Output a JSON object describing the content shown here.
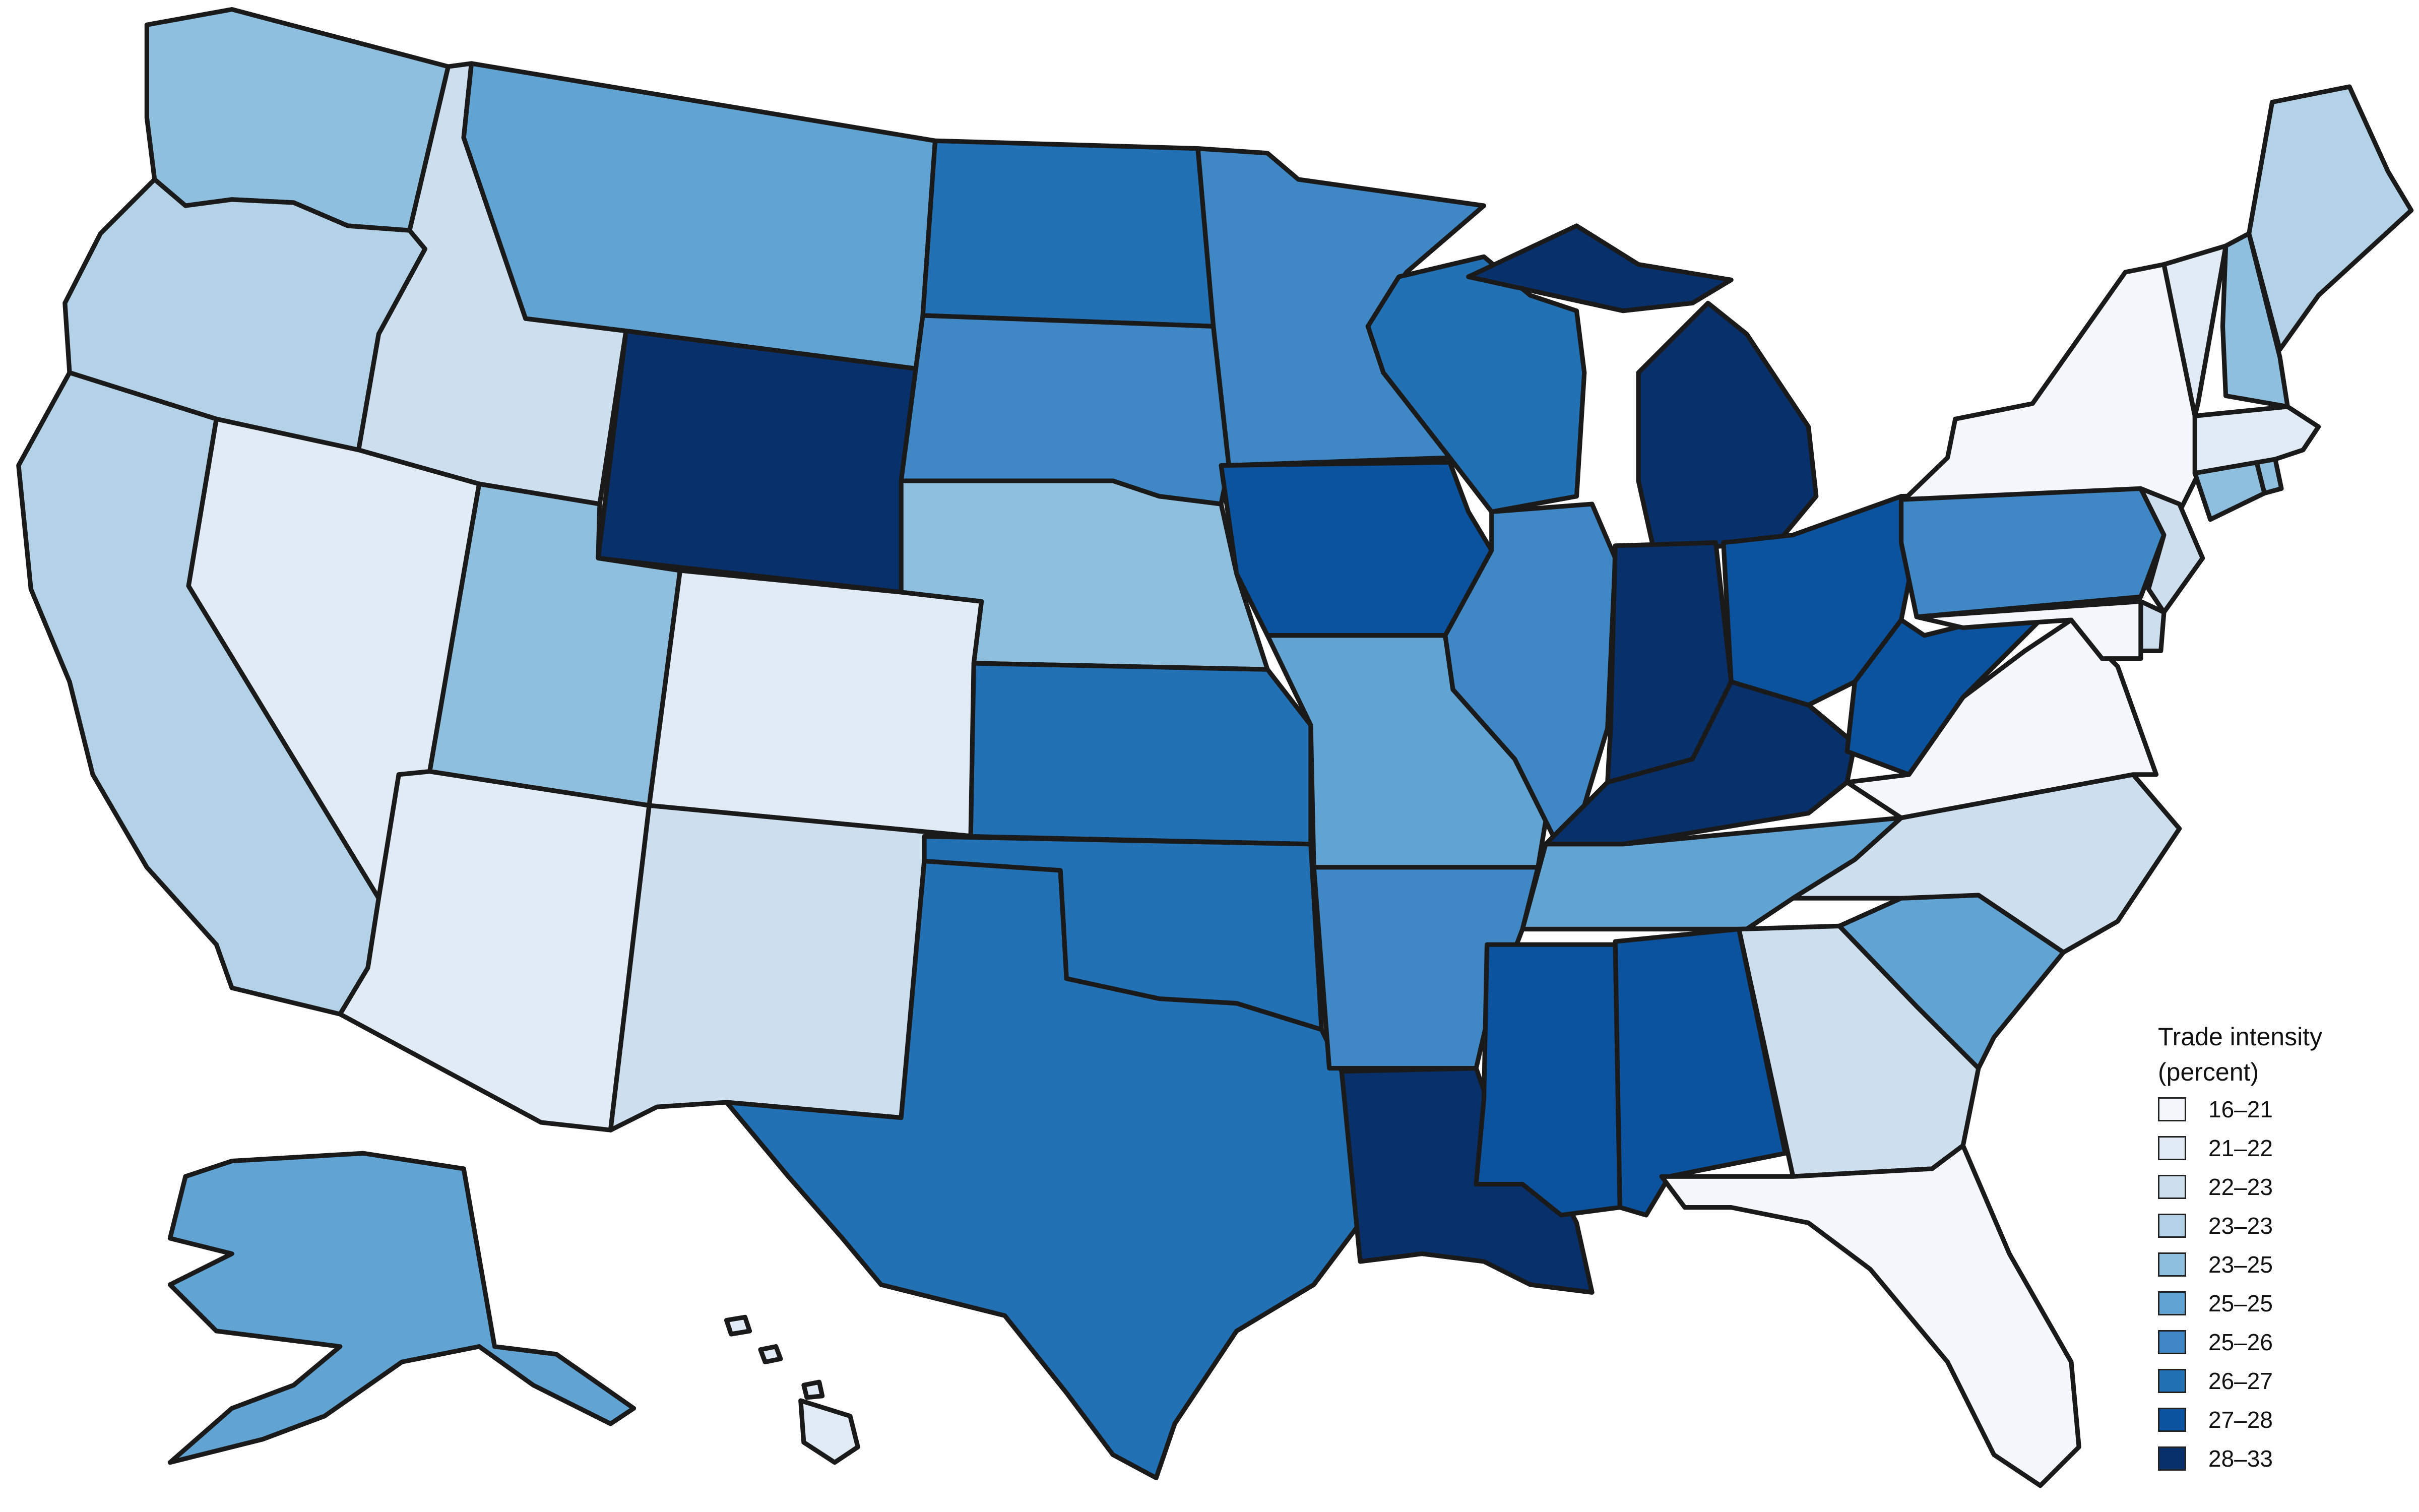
{
  "map": {
    "type": "choropleth",
    "region": "United States"
  },
  "legend": {
    "title_line1": "Trade intensity",
    "title_line2": "(percent)",
    "bins": [
      {
        "label": "16–21",
        "color": "#f4f8fd"
      },
      {
        "label": "21–22",
        "color": "#e1ebf6"
      },
      {
        "label": "22–23",
        "color": "#cddfef"
      },
      {
        "label": "23–23",
        "color": "#b3d2e8"
      },
      {
        "label": "23–25",
        "color": "#8ebfdf"
      },
      {
        "label": "25–25",
        "color": "#61a3d2"
      },
      {
        "label": "25–26",
        "color": "#3f88c5"
      },
      {
        "label": "26–27",
        "color": "#2371b5"
      },
      {
        "label": "27–28",
        "color": "#0b539e"
      },
      {
        "label": "28–33",
        "color": "#08306b"
      }
    ]
  },
  "states": [
    {
      "name": "Washington",
      "bin": 4
    },
    {
      "name": "Oregon",
      "bin": 3
    },
    {
      "name": "California",
      "bin": 3
    },
    {
      "name": "Idaho",
      "bin": 2
    },
    {
      "name": "Nevada",
      "bin": 1
    },
    {
      "name": "Montana",
      "bin": 5
    },
    {
      "name": "Wyoming",
      "bin": 9
    },
    {
      "name": "Utah",
      "bin": 4
    },
    {
      "name": "Arizona",
      "bin": 1
    },
    {
      "name": "Colorado",
      "bin": 1
    },
    {
      "name": "New Mexico",
      "bin": 2
    },
    {
      "name": "North Dakota",
      "bin": 7
    },
    {
      "name": "South Dakota",
      "bin": 6
    },
    {
      "name": "Nebraska",
      "bin": 4
    },
    {
      "name": "Kansas",
      "bin": 7
    },
    {
      "name": "Oklahoma",
      "bin": 7
    },
    {
      "name": "Texas",
      "bin": 7
    },
    {
      "name": "Minnesota",
      "bin": 6
    },
    {
      "name": "Iowa",
      "bin": 8
    },
    {
      "name": "Missouri",
      "bin": 5
    },
    {
      "name": "Arkansas",
      "bin": 6
    },
    {
      "name": "Louisiana",
      "bin": 9
    },
    {
      "name": "Wisconsin",
      "bin": 7
    },
    {
      "name": "Illinois",
      "bin": 6
    },
    {
      "name": "Michigan",
      "bin": 9
    },
    {
      "name": "Indiana",
      "bin": 9
    },
    {
      "name": "Ohio",
      "bin": 8
    },
    {
      "name": "Kentucky",
      "bin": 9
    },
    {
      "name": "Tennessee",
      "bin": 5
    },
    {
      "name": "Mississippi",
      "bin": 8
    },
    {
      "name": "Alabama",
      "bin": 8
    },
    {
      "name": "Georgia",
      "bin": 2
    },
    {
      "name": "Florida",
      "bin": 0
    },
    {
      "name": "South Carolina",
      "bin": 5
    },
    {
      "name": "North Carolina",
      "bin": 2
    },
    {
      "name": "Virginia",
      "bin": 0
    },
    {
      "name": "West Virginia",
      "bin": 8
    },
    {
      "name": "Pennsylvania",
      "bin": 6
    },
    {
      "name": "New York",
      "bin": 0
    },
    {
      "name": "New Jersey",
      "bin": 2
    },
    {
      "name": "Delaware",
      "bin": 2
    },
    {
      "name": "Maryland",
      "bin": 0
    },
    {
      "name": "Connecticut",
      "bin": 4
    },
    {
      "name": "Rhode Island",
      "bin": 4
    },
    {
      "name": "Massachusetts",
      "bin": 1
    },
    {
      "name": "Vermont",
      "bin": 1
    },
    {
      "name": "New Hampshire",
      "bin": 4
    },
    {
      "name": "Maine",
      "bin": 3
    },
    {
      "name": "Alaska",
      "bin": 5
    },
    {
      "name": "Hawaii",
      "bin": 1
    }
  ]
}
